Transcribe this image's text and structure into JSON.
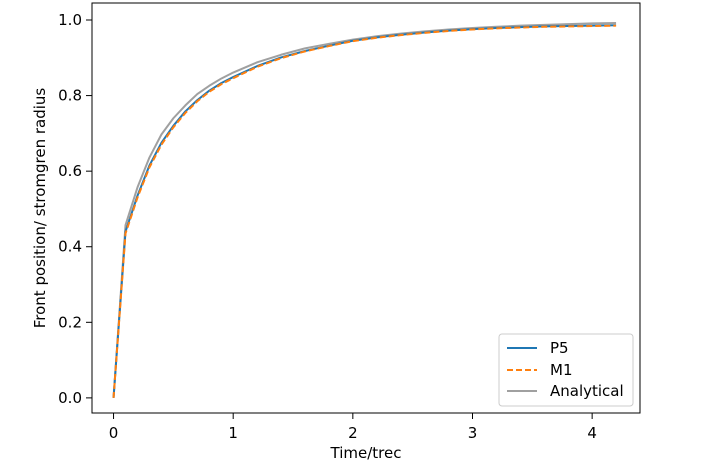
{
  "chart_data": {
    "type": "line",
    "title": "",
    "xlabel": "Time/trec",
    "ylabel": "Front position/ stromgren radius",
    "xlim": [
      -0.18,
      4.4
    ],
    "ylim": [
      -0.04,
      1.045
    ],
    "xticks": [
      0,
      1,
      2,
      3,
      4
    ],
    "xtick_labels": [
      "0",
      "1",
      "2",
      "3",
      "4"
    ],
    "yticks": [
      0.0,
      0.2,
      0.4,
      0.6,
      0.8,
      1.0
    ],
    "ytick_labels": [
      "0.0",
      "0.2",
      "0.4",
      "0.6",
      "0.8",
      "1.0"
    ],
    "grid": false,
    "legend_position": "lower-right",
    "x": [
      0,
      0.1,
      0.2,
      0.3,
      0.4,
      0.5,
      0.6,
      0.7,
      0.8,
      0.9,
      1.0,
      1.2,
      1.4,
      1.6,
      1.8,
      2.0,
      2.2,
      2.4,
      2.6,
      2.8,
      3.0,
      3.2,
      3.4,
      3.6,
      3.8,
      4.0,
      4.2
    ],
    "series": [
      {
        "name": "P5",
        "color": "#1f77b4",
        "style": "solid",
        "values": [
          0.0,
          0.44,
          0.535,
          0.615,
          0.675,
          0.72,
          0.758,
          0.788,
          0.813,
          0.833,
          0.849,
          0.878,
          0.901,
          0.918,
          0.932,
          0.945,
          0.954,
          0.961,
          0.967,
          0.972,
          0.976,
          0.979,
          0.981,
          0.983,
          0.984,
          0.985,
          0.986
        ]
      },
      {
        "name": "M1",
        "color": "#ff7f0e",
        "style": "dashed",
        "values": [
          0.0,
          0.435,
          0.53,
          0.61,
          0.67,
          0.716,
          0.754,
          0.785,
          0.81,
          0.83,
          0.846,
          0.876,
          0.899,
          0.917,
          0.931,
          0.944,
          0.953,
          0.96,
          0.966,
          0.971,
          0.975,
          0.978,
          0.98,
          0.982,
          0.983,
          0.984,
          0.985
        ]
      },
      {
        "name": "Analytical",
        "color": "#a0a0a0",
        "style": "solid",
        "values": [
          0.0,
          0.457,
          0.557,
          0.636,
          0.697,
          0.74,
          0.774,
          0.804,
          0.826,
          0.845,
          0.861,
          0.888,
          0.908,
          0.925,
          0.937,
          0.948,
          0.957,
          0.964,
          0.97,
          0.975,
          0.979,
          0.982,
          0.985,
          0.987,
          0.989,
          0.991,
          0.992
        ]
      }
    ]
  }
}
